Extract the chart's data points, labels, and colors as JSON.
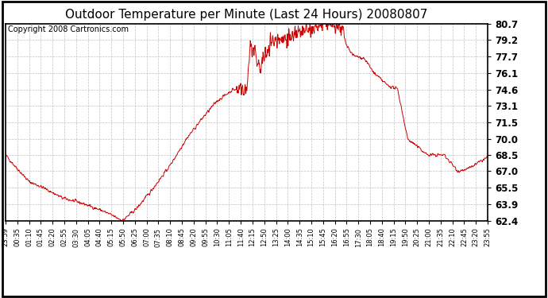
{
  "title": "Outdoor Temperature per Minute (Last 24 Hours) 20080807",
  "copyright": "Copyright 2008 Cartronics.com",
  "line_color": "#cc0000",
  "bg_color": "#ffffff",
  "grid_color": "#bbbbbb",
  "title_fontsize": 11,
  "copyright_fontsize": 7,
  "ylabel_right": [
    "62.4",
    "63.9",
    "65.5",
    "67.0",
    "68.5",
    "70.0",
    "71.5",
    "73.1",
    "74.6",
    "76.1",
    "77.7",
    "79.2",
    "80.7"
  ],
  "ymin": 62.4,
  "ymax": 80.7,
  "x_tick_labels": [
    "23:59",
    "00:35",
    "01:10",
    "01:45",
    "02:20",
    "02:55",
    "03:30",
    "04:05",
    "04:40",
    "05:15",
    "05:50",
    "06:25",
    "07:00",
    "07:35",
    "08:10",
    "08:45",
    "09:20",
    "09:55",
    "10:30",
    "11:05",
    "11:40",
    "12:15",
    "12:50",
    "13:25",
    "14:00",
    "14:35",
    "15:10",
    "15:45",
    "16:20",
    "16:55",
    "17:30",
    "18:05",
    "18:40",
    "19:15",
    "19:50",
    "20:25",
    "21:00",
    "21:35",
    "22:10",
    "22:45",
    "23:20",
    "23:55"
  ],
  "waypoints_x": [
    0,
    36,
    71,
    110,
    170,
    230,
    290,
    350,
    391,
    431,
    491,
    540,
    590,
    631,
    680,
    720,
    731,
    760,
    791,
    820,
    851,
    880,
    910,
    951,
    980,
    1001,
    1021,
    1041,
    1071,
    1101,
    1140,
    1171,
    1201,
    1261,
    1310,
    1351,
    1381,
    1440
  ],
  "waypoints_y": [
    68.5,
    67.2,
    66.0,
    65.5,
    64.5,
    64.0,
    63.3,
    62.4,
    63.5,
    65.0,
    67.5,
    70.0,
    72.0,
    73.5,
    74.6,
    74.4,
    78.8,
    76.5,
    79.0,
    79.3,
    79.5,
    79.8,
    80.0,
    80.7,
    80.5,
    80.3,
    78.5,
    77.7,
    77.5,
    76.1,
    75.0,
    74.6,
    70.0,
    68.5,
    68.5,
    67.0,
    67.2,
    68.3
  ]
}
